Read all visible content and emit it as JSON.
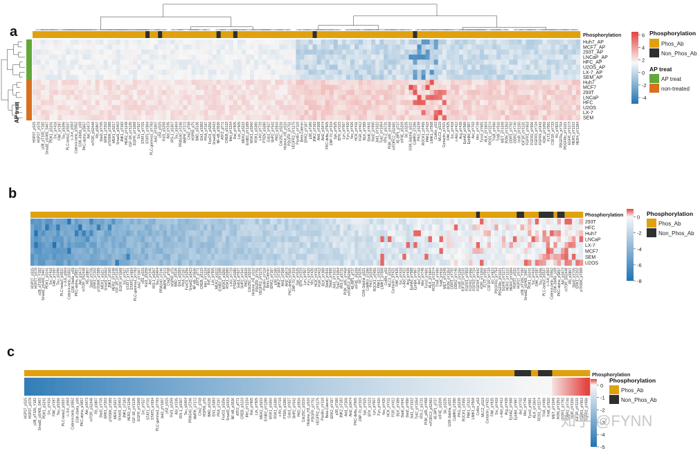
{
  "chart_data": [
    {
      "type": "heatmap",
      "panel": "a",
      "rows": [
        "Huh7_AP",
        "MCF7_AP",
        "293T_AP",
        "LNCaP_AP",
        "HFC_AP",
        "U2OS_AP",
        "LX-7_AP",
        "SEM_AP",
        "Huh7",
        "MCF7",
        "293T",
        "LNCaP",
        "HFC",
        "U2OS",
        "LX-7",
        "SEM"
      ],
      "row_annotation": {
        "title": "AP treat",
        "values": [
          "AP treat",
          "AP treat",
          "AP treat",
          "AP treat",
          "AP treat",
          "AP treat",
          "AP treat",
          "AP treat",
          "non-treated",
          "non-treated",
          "non-treated",
          "non-treated",
          "non-treated",
          "non-treated",
          "non-treated",
          "non-treated"
        ]
      },
      "col_annotation_title": "Phosphorylation",
      "colorbar_ticks": [
        6,
        4,
        2,
        0,
        -2,
        -4
      ],
      "color_range": [
        -5,
        6.5
      ],
      "columns": [
        "HSP27_pS15",
        "HSP27_pS78",
        "p38_pT180_Y182",
        "Smad2_pS465_S467",
        "PDK1_pS241",
        "Src_pY416",
        "FAK_pY397",
        "Tau_pS396",
        "PLC-beta3_pS537",
        "c-Jun_pS63",
        "Catenin-beta_pS552",
        "GSK-3beta_pS9",
        "PKC-alpha_pS657",
        "Akt_pS473",
        "mTOR_pS2448",
        "Rb_pS807",
        "Stat3_pY705",
        "ERK1_pT202",
        "p70S6K_pT389",
        "MEK1_pS217",
        "Smad1_pS463",
        "JNK1_pT183",
        "HER2_pY1248",
        "IGF-1R_pY1135",
        "EGFR_pY1068",
        "Src_pY527",
        "STAT1_pY701",
        "STAT5_pY694",
        "PLC-gamma1_pY783",
        "Jak2_pY1007",
        "p53_pS15",
        "Raf1_pS259",
        "Abl_pY245",
        "IRS-1_pS307",
        "Tau_pS404",
        "PRAS40_pT246",
        "AMPK_pT172",
        "Chk2_pT68",
        "HSP90_pT5",
        "BAD_pS136",
        "Elk1_pS383",
        "PKA_pT197",
        "FoxO1_pS256",
        "Smad3_pS423",
        "NF-kB_pS536",
        "ATF2_pT71",
        "CREB_pS133",
        "Met_pY1234",
        "Ret_pY905",
        "Lck_pY505",
        "MEK2_pS222",
        "ErbB3_pY1289",
        "MSK1_pS360",
        "RSK1_pS380",
        "c-Kit_pY719",
        "PTEN_pS380",
        "Gab1_pY627",
        "SHP2_pY542",
        "PKD_pS916",
        "Cdc25C_pS216",
        "Histone_H3_pS10",
        "PDGFR_pY751",
        "VEGFR2_pY1175",
        "Paxillin_pY118",
        "Beta-Catenin",
        "ERK2_pY187",
        "p38_pT180",
        "JNK2_pT183",
        "Akt1_pT308",
        "Akt2_pS474",
        "PKC-delta_pT505",
        "ZAP-70_pY319",
        "Syk_pY525",
        "BTK_pY223",
        "Lyn_pY507",
        "Fyn_pY420",
        "Yes_pY426",
        "HCK_pY411",
        "FGR_pY412",
        "BLK_pY389",
        "Stat6_pY641",
        "Stat2_pY690",
        "Jak1_pY1022",
        "Tyk2_pY1054",
        "IRS-2_pS731",
        "PI3K_p85_pY458",
        "mTORC2_pS2481",
        "4E-BP1_pT37",
        "eIF4E_pS209",
        "S6_pS235",
        "GSK-3alpha_pS21",
        "CaMKII_pT286",
        "PKG_pS239",
        "ROCK1_pT455",
        "PAK1_pT423",
        "LIMK1_pT508",
        "Cofilin_pS3",
        "MLC2_pS19",
        "Cortactin_pY421",
        "FAK_pY925",
        "Src_pY418",
        "c-Abl_pY412",
        "Arg_pY439",
        "EphA2_pY588",
        "EphB4_pY987",
        "Axl_pY702",
        "Mer_pY749",
        "Tyro3_pY681",
        "ALK_pY1604",
        "ROS1_pY2274",
        "TrkA_pY490",
        "TrkB_pY516",
        "MET_pY1349",
        "RON_pY1353",
        "DDR1_pY792",
        "DDR2_pY740",
        "InsR_pY1150",
        "IGF1R_pY1131",
        "FGFR1_pY653",
        "FGFR2_pY656",
        "FGFR3_pY724",
        "FGFR4_pY642",
        "KDR_pY1059",
        "FLT3_pY591",
        "CSF1R_pY723",
        "Kit_pY823",
        "PDGFRa_pY754",
        "PDGFRb_pY1021",
        "EGFR_pY1173",
        "HER3_pY1222",
        "HER4_pY1284"
      ]
    },
    {
      "type": "heatmap",
      "panel": "b",
      "rows": [
        "293T",
        "HFC",
        "Huh7",
        "LNCaP",
        "LX-7",
        "MCF7",
        "SEM",
        "U2OS"
      ],
      "col_annotation_title": "Phosphorylation",
      "colorbar_ticks": [
        0,
        -2,
        -4,
        -6,
        -8
      ],
      "color_range": [
        -8,
        1
      ],
      "column_count": 150
    },
    {
      "type": "heatmap",
      "panel": "c",
      "rows": [
        ""
      ],
      "col_annotation_title": "Phosphorylation",
      "colorbar_ticks": [
        0,
        -1,
        -2,
        -3,
        -4,
        -5
      ],
      "color_range": [
        -5,
        0.5
      ],
      "column_count": 240
    }
  ],
  "panels": {
    "a_label": "a",
    "b_label": "b",
    "c_label": "c",
    "row_annotation_label": "AP treat"
  },
  "legend": {
    "phos_title": "Phosphorylation",
    "phos_ab": "Phos_Ab",
    "non_phos_ab": "Non_Phos_Ab",
    "ap_title": "AP treat",
    "ap_treat": "AP treat",
    "non_treated": "non-treated"
  },
  "colors": {
    "phos_ab": "#e0a10f",
    "non_phos_ab": "#2f2f2f",
    "ap_treat": "#61a83b",
    "non_treated": "#d9701f",
    "high": "#e3433f",
    "mid": "#f7f7f7",
    "low": "#2173b3"
  },
  "watermark": "知乎 @FYNN"
}
